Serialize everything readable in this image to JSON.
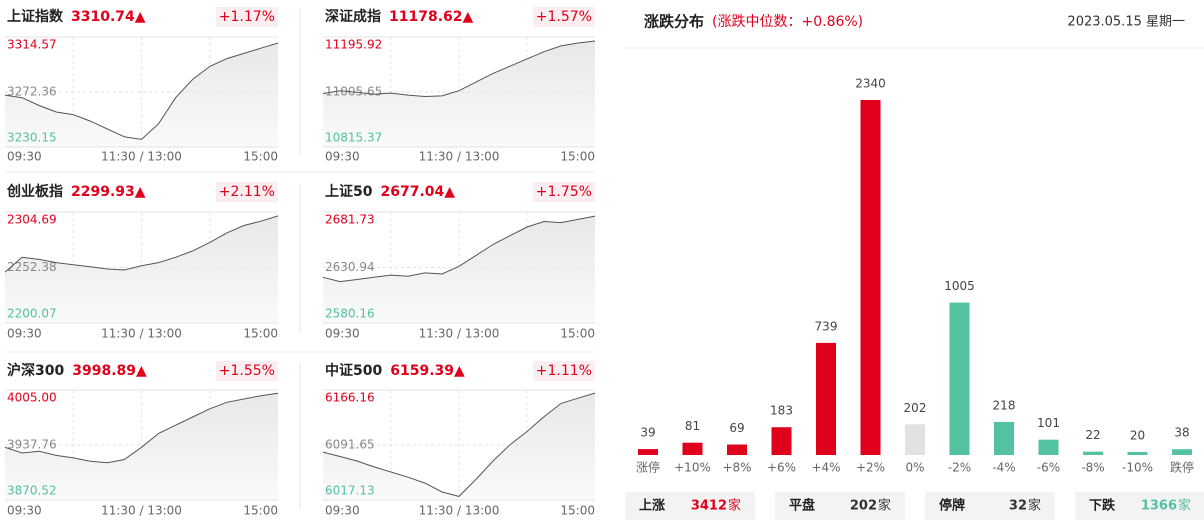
{
  "chart_data": [
    {
      "type": "line",
      "title": "上证指数",
      "price": "3310.74▲",
      "change": "+1.17%",
      "x_labels": [
        "09:30",
        "11:30 / 13:00",
        "15:00"
      ],
      "ylim": [
        3230.15,
        3314.57
      ],
      "yticks": [
        3230.15,
        3272.36,
        3314.57
      ],
      "values": [
        3270,
        3268,
        3262,
        3257,
        3255,
        3250,
        3244,
        3238,
        3236,
        3248,
        3268,
        3282,
        3292,
        3298,
        3302,
        3306,
        3310
      ]
    },
    {
      "type": "line",
      "title": "深证成指",
      "price": "11178.62▲",
      "change": "+1.57%",
      "x_labels": [
        "09:30",
        "11:30 / 13:00",
        "15:00"
      ],
      "ylim": [
        10815.37,
        11195.92
      ],
      "yticks": [
        10815.37,
        11005.65,
        11195.92
      ],
      "values": [
        11000,
        11010,
        11005,
        10998,
        11002,
        10995,
        10990,
        10992,
        11010,
        11040,
        11070,
        11095,
        11120,
        11145,
        11165,
        11175,
        11182
      ]
    },
    {
      "type": "line",
      "title": "创业板指",
      "price": "2299.93▲",
      "change": "+2.11%",
      "x_labels": [
        "09:30",
        "11:30 / 13:00",
        "15:00"
      ],
      "ylim": [
        2200.07,
        2304.69
      ],
      "yticks": [
        2200.07,
        2252.38,
        2304.69
      ],
      "values": [
        2248,
        2262,
        2260,
        2257,
        2255,
        2253,
        2251,
        2250,
        2254,
        2257,
        2262,
        2268,
        2276,
        2285,
        2292,
        2296,
        2301
      ]
    },
    {
      "type": "line",
      "title": "上证50",
      "price": "2677.04▲",
      "change": "+1.75%",
      "x_labels": [
        "09:30",
        "11:30 / 13:00",
        "15:00"
      ],
      "ylim": [
        2580.16,
        2681.73
      ],
      "yticks": [
        2580.16,
        2630.94,
        2681.73
      ],
      "values": [
        2622,
        2618,
        2620,
        2622,
        2624,
        2623,
        2626,
        2625,
        2632,
        2642,
        2652,
        2660,
        2668,
        2673,
        2672,
        2675,
        2678
      ]
    },
    {
      "type": "line",
      "title": "沪深300",
      "price": "3998.89▲",
      "change": "+1.55%",
      "x_labels": [
        "09:30",
        "11:30 / 13:00",
        "15:00"
      ],
      "ylim": [
        3870.52,
        4005.0
      ],
      "yticks": [
        3870.52,
        3937.76,
        {
          "value": 4005.0,
          "label": "4005.00"
        }
      ],
      "values": [
        3935,
        3928,
        3930,
        3925,
        3922,
        3918,
        3916,
        3920,
        3935,
        3952,
        3962,
        3972,
        3982,
        3990,
        3994,
        3998,
        4001
      ]
    },
    {
      "type": "line",
      "title": "中证500",
      "price": "6159.39▲",
      "change": "+1.11%",
      "x_labels": [
        "09:30",
        "11:30 / 13:00",
        "15:00"
      ],
      "ylim": [
        6017.13,
        6166.16
      ],
      "yticks": [
        6017.13,
        6091.65,
        6166.16
      ],
      "values": [
        6082,
        6076,
        6070,
        6062,
        6055,
        6048,
        6040,
        6028,
        6022,
        6045,
        6070,
        6092,
        6110,
        6130,
        6148,
        6155,
        6162
      ]
    },
    {
      "type": "bar",
      "title": "涨跌分布",
      "subtitle": "(涨跌中位数：+0.86%)",
      "date": "2023.05.15 星期一",
      "categories": [
        "涨停",
        "+10%",
        "+8%",
        "+6%",
        "+4%",
        "+2%",
        "0%",
        "-2%",
        "-4%",
        "-6%",
        "-8%",
        "-10%",
        "跌停"
      ],
      "values": [
        39,
        81,
        69,
        183,
        739,
        2340,
        202,
        1005,
        218,
        101,
        22,
        20,
        38
      ],
      "colors": [
        "#e0001b",
        "#e0001b",
        "#e0001b",
        "#e0001b",
        "#e0001b",
        "#e0001b",
        "#e2e2e2",
        "#52c2a0",
        "#52c2a0",
        "#52c2a0",
        "#52c2a0",
        "#52c2a0",
        "#52c2a0"
      ]
    }
  ],
  "summary": [
    {
      "label": "上涨",
      "count": 3412,
      "unit": "家",
      "color": "#e0001b"
    },
    {
      "label": "平盘",
      "count": 202,
      "unit": "家",
      "color": "#333333"
    },
    {
      "label": "停牌",
      "count": 32,
      "unit": "家",
      "color": "#333333"
    },
    {
      "label": "下跌",
      "count": 1366,
      "unit": "家",
      "color": "#52c2a0"
    }
  ]
}
